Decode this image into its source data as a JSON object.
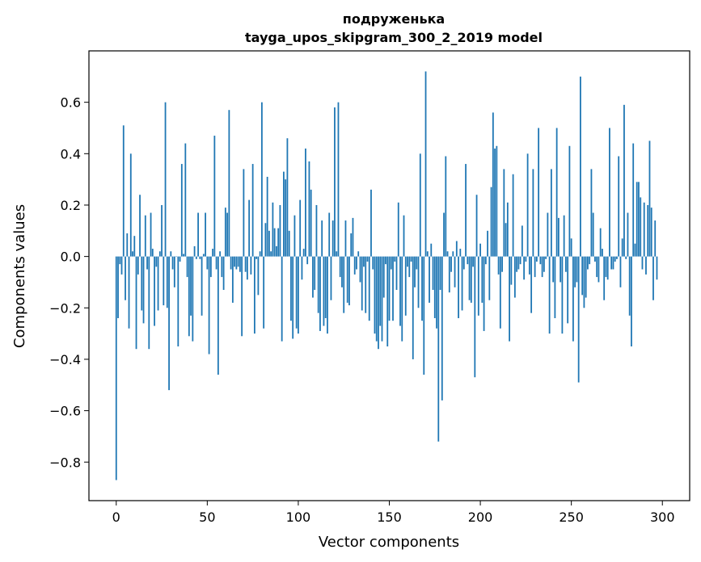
{
  "chart_data": {
    "type": "bar",
    "title": "подруженька",
    "subtitle": "tayga_upos_skipgram_300_2_2019 model",
    "xlabel": "Vector components",
    "ylabel": "Components values",
    "xlim": [
      -15,
      315
    ],
    "ylim": [
      -0.95,
      0.8
    ],
    "xticks": [
      0,
      50,
      100,
      150,
      200,
      250,
      300
    ],
    "yticks": [
      -0.8,
      -0.6,
      -0.4,
      -0.2,
      0.0,
      0.2,
      0.4,
      0.6
    ],
    "ytick_labels": [
      "−0.8",
      "−0.6",
      "−0.4",
      "−0.2",
      "0.0",
      "0.2",
      "0.4",
      "0.6"
    ],
    "xtick_labels": [
      "0",
      "50",
      "100",
      "150",
      "200",
      "250",
      "300"
    ],
    "bar_color": "#1f77b4",
    "series": [
      {
        "name": "components",
        "values": [
          -0.87,
          -0.24,
          -0.03,
          -0.07,
          0.51,
          -0.17,
          0.09,
          -0.28,
          0.4,
          0.02,
          0.08,
          -0.36,
          -0.07,
          0.24,
          -0.21,
          -0.26,
          0.16,
          -0.05,
          -0.36,
          0.17,
          0.03,
          -0.27,
          -0.04,
          -0.21,
          0.02,
          0.2,
          -0.19,
          0.6,
          -0.2,
          -0.52,
          0.02,
          -0.05,
          -0.12,
          0.0,
          -0.35,
          -0.02,
          0.36,
          0.01,
          0.44,
          -0.08,
          -0.31,
          -0.23,
          -0.33,
          0.04,
          -0.01,
          0.17,
          -0.01,
          -0.23,
          0.01,
          0.17,
          -0.05,
          -0.38,
          -0.08,
          0.03,
          0.47,
          -0.05,
          -0.46,
          0.02,
          -0.08,
          -0.13,
          0.19,
          0.17,
          0.57,
          -0.05,
          -0.18,
          -0.04,
          -0.05,
          -0.04,
          -0.06,
          -0.31,
          0.34,
          -0.06,
          -0.09,
          0.22,
          -0.07,
          0.36,
          -0.3,
          -0.01,
          -0.15,
          0.02,
          0.6,
          -0.28,
          0.13,
          0.31,
          0.1,
          0.02,
          0.21,
          0.11,
          0.04,
          0.11,
          0.2,
          -0.33,
          0.33,
          0.3,
          0.46,
          0.1,
          -0.25,
          -0.32,
          0.16,
          -0.28,
          -0.3,
          0.22,
          -0.09,
          0.03,
          0.42,
          -0.03,
          0.37,
          0.26,
          -0.16,
          -0.13,
          0.2,
          -0.22,
          -0.29,
          0.14,
          -0.27,
          -0.24,
          -0.3,
          0.17,
          -0.17,
          0.14,
          0.58,
          0.02,
          0.6,
          -0.08,
          -0.12,
          -0.22,
          0.14,
          -0.18,
          -0.19,
          0.09,
          0.15,
          -0.07,
          -0.05,
          0.02,
          -0.1,
          -0.21,
          -0.04,
          -0.22,
          -0.02,
          -0.25,
          0.26,
          -0.05,
          -0.3,
          -0.33,
          -0.36,
          -0.27,
          -0.33,
          -0.16,
          -0.03,
          -0.35,
          -0.25,
          -0.05,
          -0.25,
          -0.02,
          -0.13,
          0.21,
          -0.27,
          -0.33,
          0.16,
          -0.23,
          -0.04,
          -0.08,
          -0.02,
          -0.4,
          -0.12,
          -0.05,
          -0.2,
          0.4,
          -0.25,
          -0.46,
          0.72,
          0.02,
          -0.18,
          0.05,
          -0.13,
          -0.24,
          -0.28,
          -0.72,
          -0.13,
          -0.56,
          0.17,
          0.39,
          0.02,
          -0.14,
          -0.06,
          0.02,
          -0.12,
          0.06,
          -0.24,
          0.03,
          -0.21,
          -0.05,
          0.36,
          -0.03,
          -0.17,
          -0.18,
          -0.04,
          -0.47,
          0.24,
          -0.23,
          0.05,
          -0.18,
          -0.29,
          -0.03,
          0.1,
          -0.17,
          0.27,
          0.56,
          0.42,
          0.43,
          -0.07,
          -0.28,
          -0.06,
          0.34,
          0.13,
          0.21,
          -0.33,
          -0.11,
          0.32,
          -0.16,
          -0.06,
          -0.05,
          -0.03,
          0.12,
          -0.09,
          -0.02,
          0.4,
          -0.07,
          -0.22,
          0.34,
          -0.08,
          -0.02,
          0.5,
          -0.03,
          -0.08,
          -0.06,
          -0.01,
          0.17,
          -0.3,
          0.34,
          -0.1,
          -0.24,
          0.5,
          0.15,
          -0.1,
          -0.3,
          0.16,
          -0.06,
          -0.26,
          0.43,
          0.07,
          -0.33,
          -0.12,
          -0.1,
          -0.49,
          0.7,
          -0.15,
          -0.2,
          -0.16,
          -0.05,
          -0.03,
          0.34,
          0.17,
          -0.02,
          -0.08,
          -0.1,
          0.11,
          0.03,
          -0.17,
          -0.08,
          -0.09,
          0.5,
          -0.05,
          -0.05,
          -0.02,
          -0.01,
          0.39,
          -0.12,
          0.07,
          0.59,
          -0.01,
          0.17,
          -0.23,
          -0.35,
          0.44,
          0.05,
          0.29,
          0.29,
          0.23,
          -0.05,
          0.21,
          -0.07,
          0.2,
          0.45,
          0.19,
          -0.17,
          0.14,
          -0.09
        ]
      }
    ]
  }
}
